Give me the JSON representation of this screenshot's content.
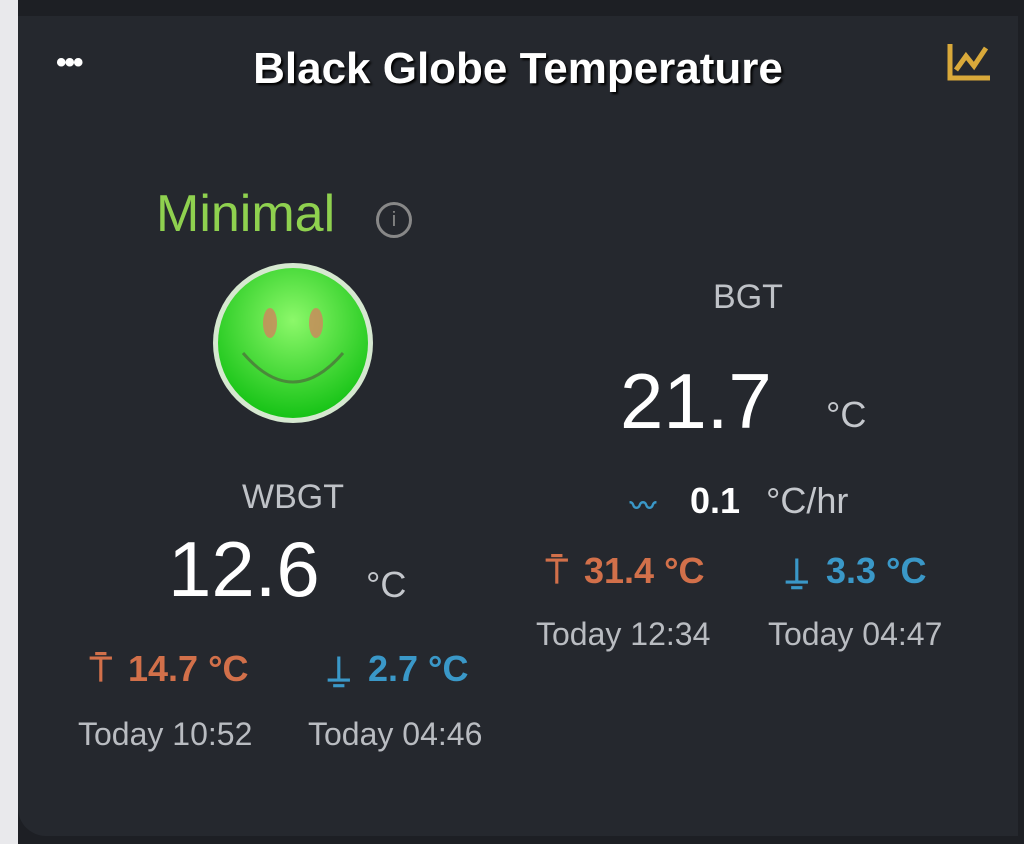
{
  "header": {
    "title": "Black Globe Temperature",
    "menu_icon": "ellipsis-icon",
    "chart_icon": "line-chart-icon"
  },
  "status": {
    "label": "Minimal",
    "color": "#8fd14f",
    "face": "smiley-face-icon"
  },
  "wbgt": {
    "label": "WBGT",
    "value": "12.6",
    "unit": "°C",
    "high": "14.7 °C",
    "high_time": "Today 10:52",
    "low": "2.7 °C",
    "low_time": "Today 04:46"
  },
  "bgt": {
    "label": "BGT",
    "value": "21.7",
    "unit": "°C",
    "trend": "0.1",
    "trend_unit": "°C/hr",
    "high": "31.4 °C",
    "high_time": "Today 12:34",
    "low": "3.3 °C",
    "low_time": "Today 04:47"
  },
  "colors": {
    "high": "#d2704a",
    "low": "#3a98c8",
    "accent": "#d9a93a"
  }
}
